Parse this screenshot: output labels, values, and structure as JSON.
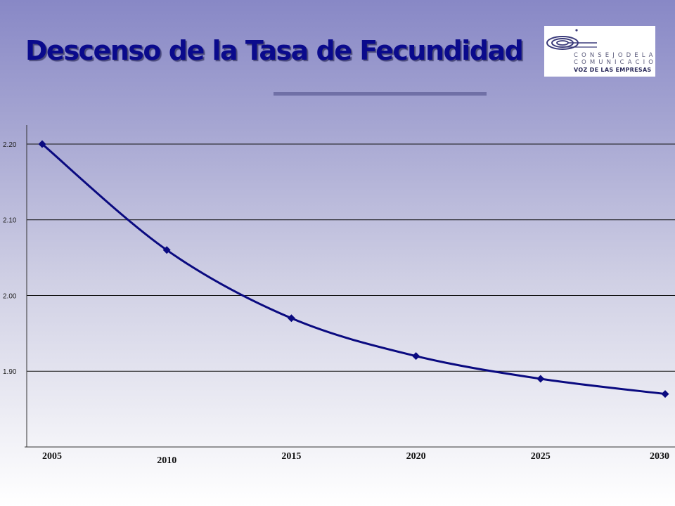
{
  "slide": {
    "title": "Descenso de la Tasa de Fecundidad"
  },
  "logo": {
    "line1": "C O N S E J O   D E   L A",
    "line2": "C O M U N I C A C I O N . A C",
    "line3": "VOZ DE LAS EMPRESAS"
  },
  "colors": {
    "title": "#0a0a8c",
    "series": "#0a0a80",
    "rule": "#7070a6"
  },
  "chart_data": {
    "type": "line",
    "title": "",
    "xlabel": "",
    "ylabel": "",
    "categories": [
      "2005",
      "2010",
      "2015",
      "2020",
      "2025",
      "2030"
    ],
    "series": [
      {
        "name": "",
        "values": [
          2.2,
          2.06,
          1.97,
          1.92,
          1.89,
          1.87
        ]
      }
    ],
    "y_ticks": [
      "1.90",
      "2.00",
      "2.10",
      "2.20"
    ],
    "ylim": [
      1.8,
      2.225
    ],
    "grid": "horizontal",
    "legend": "none",
    "markers": "diamond",
    "smooth": true
  }
}
